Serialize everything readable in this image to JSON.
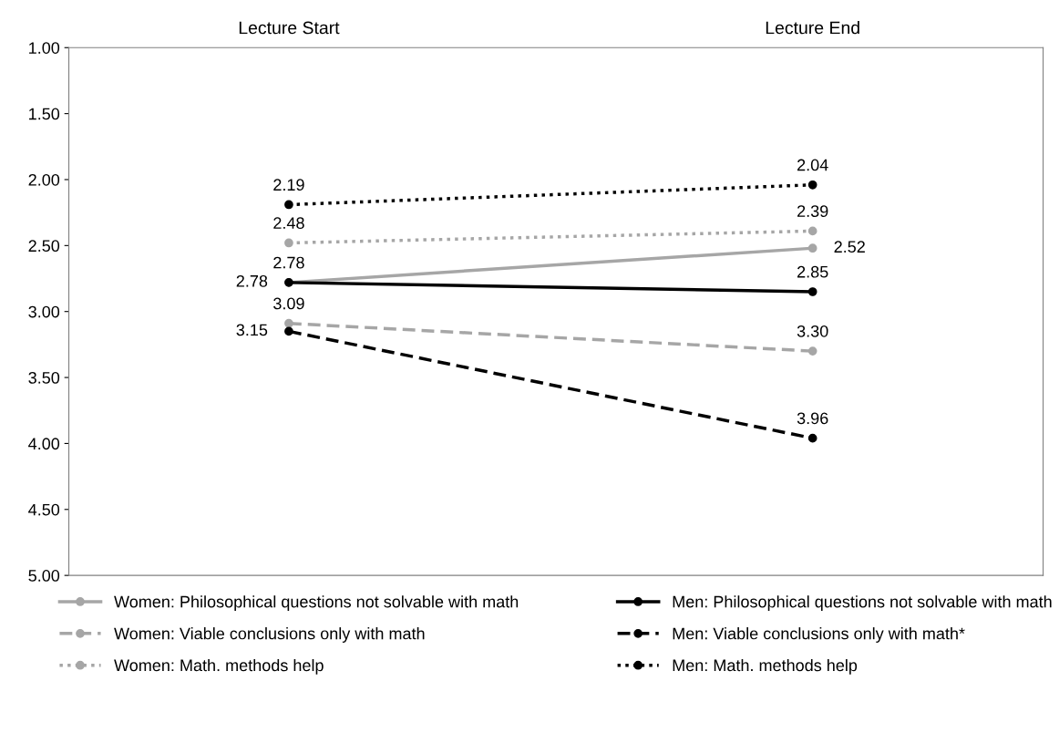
{
  "chart_data": {
    "type": "line",
    "categories": [
      "Lecture Start",
      "Lecture End"
    ],
    "series": [
      {
        "name": "Women: Philosophical questions not solvable with math",
        "color": "#a6a6a6",
        "line_style": "solid",
        "values": [
          2.78,
          2.52
        ],
        "value_labels": [
          "2.78",
          "2.52"
        ]
      },
      {
        "name": "Men: Philosophical questions not solvable with math",
        "color": "#000000",
        "line_style": "solid",
        "values": [
          2.78,
          2.85
        ],
        "value_labels": [
          "2.78",
          "2.85"
        ]
      },
      {
        "name": "Women: Viable conclusions only with math",
        "color": "#a6a6a6",
        "line_style": "dashed",
        "values": [
          3.09,
          3.3
        ],
        "value_labels": [
          "3.09",
          "3.30"
        ]
      },
      {
        "name": "Men: Viable conclusions only with math*",
        "color": "#000000",
        "line_style": "dashed",
        "values": [
          3.15,
          3.96
        ],
        "value_labels": [
          "3.15",
          "3.96"
        ]
      },
      {
        "name": "Women: Math. methods help",
        "color": "#a6a6a6",
        "line_style": "dotted",
        "values": [
          2.48,
          2.39
        ],
        "value_labels": [
          "2.48",
          "2.39"
        ]
      },
      {
        "name": "Men: Math. methods help",
        "color": "#000000",
        "line_style": "dotted",
        "values": [
          2.19,
          2.04
        ],
        "value_labels": [
          "2.19",
          "2.04"
        ]
      }
    ],
    "ylim": [
      5,
      1
    ],
    "yticks": [
      {
        "value": 1,
        "label": "1.00"
      },
      {
        "value": 1.5,
        "label": "1.50"
      },
      {
        "value": 2,
        "label": "2.00"
      },
      {
        "value": 2.5,
        "label": "2.50"
      },
      {
        "value": 3,
        "label": "3.00"
      },
      {
        "value": 3.5,
        "label": "3.50"
      },
      {
        "value": 4,
        "label": "4.00"
      },
      {
        "value": 4.5,
        "label": "4.50"
      },
      {
        "value": 5,
        "label": "5.00"
      }
    ],
    "marker": "circle",
    "grid": false,
    "legend": "bottom"
  }
}
